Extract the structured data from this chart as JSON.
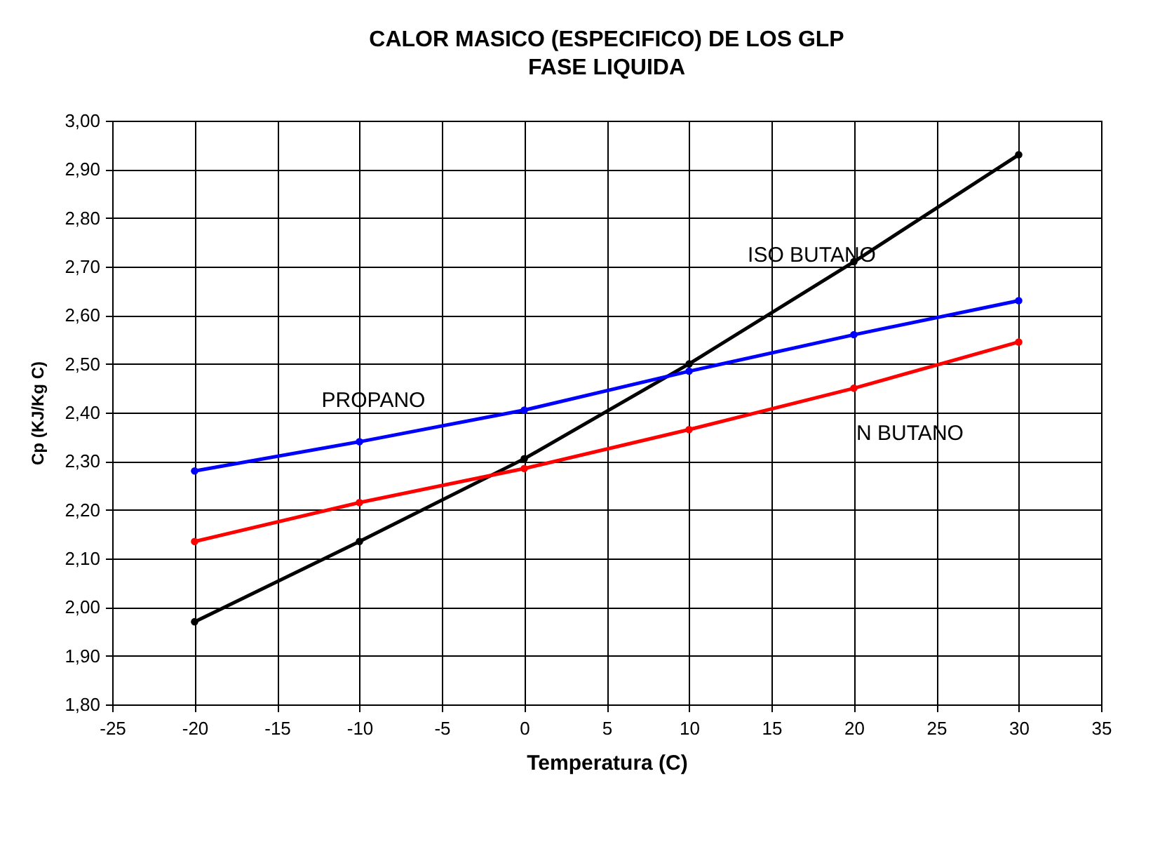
{
  "chart_data": {
    "type": "line",
    "title": "CALOR MASICO (ESPECIFICO) DE LOS GLP",
    "subtitle": "FASE LIQUIDA",
    "xlabel": "Temperatura (C)",
    "ylabel": "Cp (KJ/Kg C)",
    "x": [
      -20,
      -10,
      0,
      10,
      20,
      30
    ],
    "series": [
      {
        "name": "ISO BUTANO",
        "color": "#000000",
        "values": [
          1.97,
          2.135,
          2.305,
          2.5,
          2.71,
          2.93
        ]
      },
      {
        "name": "PROPANO",
        "color": "#0000ff",
        "values": [
          2.28,
          2.34,
          2.405,
          2.485,
          2.56,
          2.63
        ]
      },
      {
        "name": "N BUTANO",
        "color": "#ff0000",
        "values": [
          2.135,
          2.215,
          2.285,
          2.365,
          2.45,
          2.545
        ]
      }
    ],
    "xlim": [
      -25,
      35
    ],
    "xticks": [
      -25,
      -20,
      -15,
      -10,
      -5,
      0,
      5,
      10,
      15,
      20,
      25,
      30,
      35
    ],
    "ylim": [
      1.8,
      3.0
    ],
    "yticks": [
      {
        "value": 1.8,
        "label": "1,80"
      },
      {
        "value": 1.9,
        "label": "1,90"
      },
      {
        "value": 2.0,
        "label": "2,00"
      },
      {
        "value": 2.1,
        "label": "2,10"
      },
      {
        "value": 2.2,
        "label": "2,20"
      },
      {
        "value": 2.3,
        "label": "2,30"
      },
      {
        "value": 2.4,
        "label": "2,40"
      },
      {
        "value": 2.5,
        "label": "2,50"
      },
      {
        "value": 2.6,
        "label": "2,60"
      },
      {
        "value": 2.7,
        "label": "2,70"
      },
      {
        "value": 2.8,
        "label": "2,80"
      },
      {
        "value": 2.9,
        "label": "2,90"
      },
      {
        "value": 3.0,
        "label": "3,00"
      }
    ],
    "grid": true,
    "legend": false,
    "marker": "circle",
    "line_style": "solid"
  }
}
